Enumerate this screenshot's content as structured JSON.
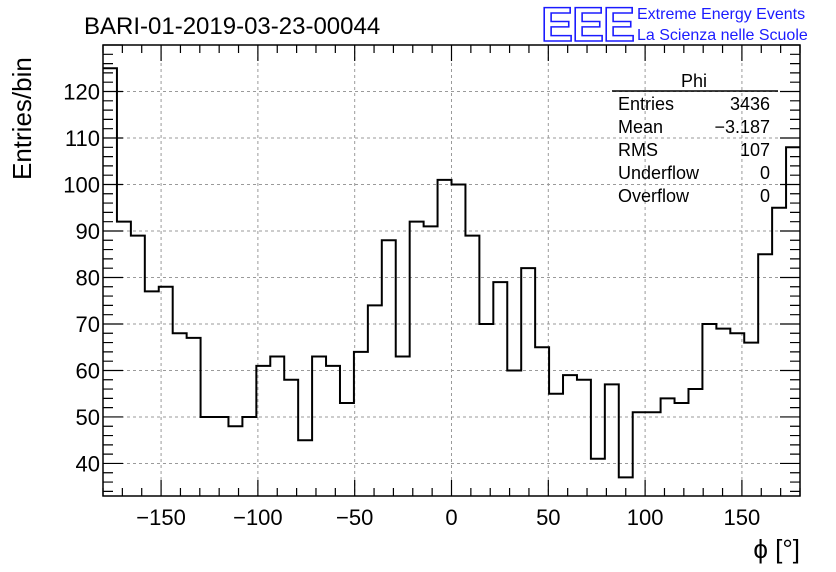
{
  "header": {
    "run_title": "BARI-01-2019-03-23-00044",
    "logo": "EEE",
    "brand_line1": "Extreme Energy Events",
    "brand_line2": "La Scienza nelle Scuole"
  },
  "stats_box": {
    "title": "Phi",
    "rows": [
      {
        "label": "Entries",
        "value": "3436"
      },
      {
        "label": "Mean",
        "value": "−3.187"
      },
      {
        "label": "RMS",
        "value": "107"
      },
      {
        "label": "Underflow",
        "value": "0"
      },
      {
        "label": "Overflow",
        "value": "0"
      }
    ]
  },
  "chart_data": {
    "type": "histogram",
    "title": "BARI-01-2019-03-23-00044",
    "xlabel": "ϕ [°]",
    "ylabel": "Entries/bin",
    "xlim": [
      -180,
      180
    ],
    "ylim": [
      33,
      130
    ],
    "bin_width": 7.2,
    "bin_edges_start": -180,
    "xticks": [
      -150,
      -100,
      -50,
      0,
      50,
      100,
      150
    ],
    "xtick_labels": [
      "−150",
      "−100",
      "−50",
      "0",
      "50",
      "100",
      "150"
    ],
    "yticks": [
      40,
      50,
      60,
      70,
      80,
      90,
      100,
      110,
      120
    ],
    "ytick_labels": [
      "40",
      "50",
      "60",
      "70",
      "80",
      "90",
      "100",
      "110",
      "120"
    ],
    "grid": true,
    "values": [
      125,
      92,
      89,
      77,
      78,
      68,
      67,
      50,
      50,
      48,
      50,
      61,
      63,
      58,
      45,
      63,
      61,
      53,
      64,
      74,
      88,
      63,
      92,
      91,
      101,
      100,
      89,
      70,
      79,
      60,
      82,
      65,
      55,
      59,
      58,
      41,
      57,
      37,
      51,
      51,
      54,
      53,
      56,
      70,
      69,
      68,
      66,
      85,
      95,
      108
    ]
  }
}
